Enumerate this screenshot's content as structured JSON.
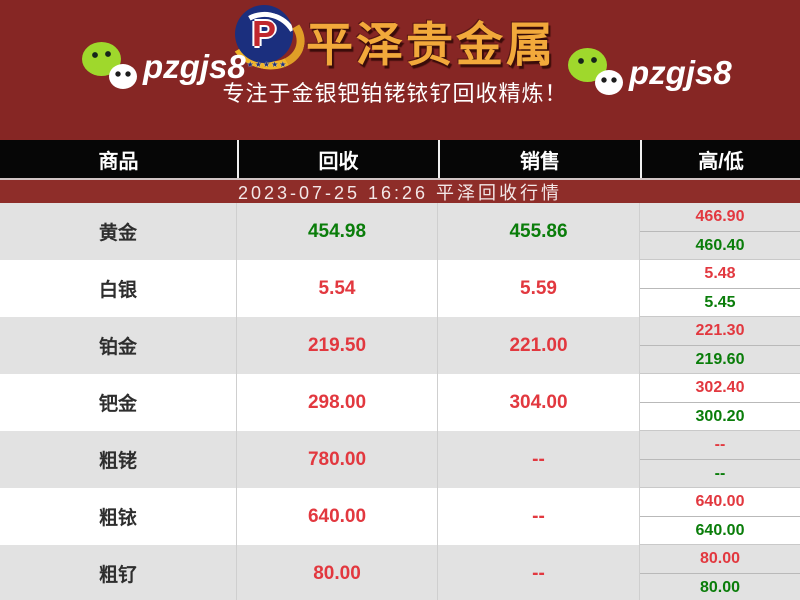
{
  "header": {
    "wechat_id_left": "pzgjs8",
    "wechat_id_right": "pzgjs8",
    "logo_letter": "P",
    "logo_stars": "★★★★★",
    "brand_title": "平泽贵金属",
    "tagline": "专注于金银钯铂铑铱钌回收精炼！"
  },
  "table": {
    "banner": "2023-07-25 16:26 平泽回收行情",
    "columns": [
      "商品",
      "回收",
      "销售",
      "高/低"
    ],
    "rows": [
      {
        "name": "黄金",
        "recycle": "454.98",
        "recycle_color": "green",
        "sell": "455.86",
        "sell_color": "green",
        "high": "466.90",
        "high_color": "red",
        "low": "460.40",
        "low_color": "green"
      },
      {
        "name": "白银",
        "recycle": "5.54",
        "recycle_color": "red",
        "sell": "5.59",
        "sell_color": "red",
        "high": "5.48",
        "high_color": "red",
        "low": "5.45",
        "low_color": "green"
      },
      {
        "name": "铂金",
        "recycle": "219.50",
        "recycle_color": "red",
        "sell": "221.00",
        "sell_color": "red",
        "high": "221.30",
        "high_color": "red",
        "low": "219.60",
        "low_color": "green"
      },
      {
        "name": "钯金",
        "recycle": "298.00",
        "recycle_color": "red",
        "sell": "304.00",
        "sell_color": "red",
        "high": "302.40",
        "high_color": "red",
        "low": "300.20",
        "low_color": "green"
      },
      {
        "name": "粗铑",
        "recycle": "780.00",
        "recycle_color": "red",
        "sell": "--",
        "sell_color": "red",
        "high": "--",
        "high_color": "red",
        "low": "--",
        "low_color": "green"
      },
      {
        "name": "粗铱",
        "recycle": "640.00",
        "recycle_color": "red",
        "sell": "--",
        "sell_color": "red",
        "high": "640.00",
        "high_color": "red",
        "low": "640.00",
        "low_color": "green"
      },
      {
        "name": "粗钌",
        "recycle": "80.00",
        "recycle_color": "red",
        "sell": "--",
        "sell_color": "red",
        "high": "80.00",
        "high_color": "red",
        "low": "80.00",
        "low_color": "green"
      }
    ]
  },
  "colors": {
    "header_bg": "#862624",
    "banner_bg": "#8e2d29",
    "table_head_bg": "#060606",
    "row_alt_bg": "#e2e2e2",
    "value_red": "#e2383f",
    "value_green": "#0a7d0a",
    "brand_gold": "#f2a93b",
    "wechat_green": "#9fd82c",
    "logo_navy": "#1b2f7e",
    "logo_p_red": "#c0272d",
    "crescent_gold": "#f0b428"
  }
}
